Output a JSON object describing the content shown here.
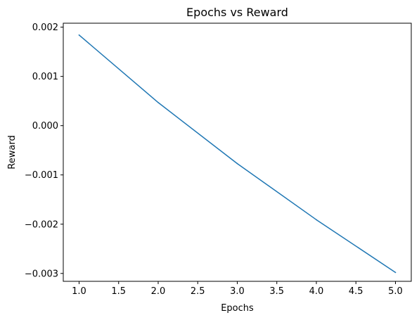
{
  "chart_data": {
    "type": "line",
    "title": "Epochs vs Reward",
    "xlabel": "Epochs",
    "ylabel": "Reward",
    "xlim": [
      0.8,
      5.2
    ],
    "ylim": [
      -0.00316,
      0.00208
    ],
    "xticks": [
      1.0,
      1.5,
      2.0,
      2.5,
      3.0,
      3.5,
      4.0,
      4.5,
      5.0
    ],
    "xtick_labels": [
      "1.0",
      "1.5",
      "2.0",
      "2.5",
      "3.0",
      "3.5",
      "4.0",
      "4.5",
      "5.0"
    ],
    "yticks": [
      0.002,
      0.001,
      0.0,
      -0.001,
      -0.002,
      -0.003
    ],
    "ytick_labels": [
      "0.002",
      "0.001",
      "0.000",
      "−0.001",
      "−0.002",
      "−0.003"
    ],
    "grid": false,
    "series": [
      {
        "color": "#1f77b4",
        "x": [
          1,
          2,
          3,
          4,
          5
        ],
        "y": [
          0.00184,
          0.00047,
          -0.00077,
          -0.00191,
          -0.00298
        ]
      }
    ]
  }
}
